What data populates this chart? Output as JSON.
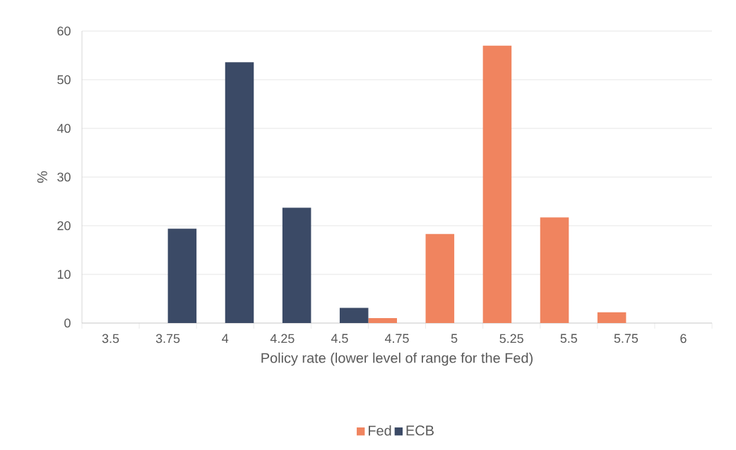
{
  "chart_data": {
    "type": "bar",
    "xlabel": "Policy rate (lower level of range for the Fed)",
    "ylabel": "%",
    "categories": [
      "3.5",
      "3.75",
      "4",
      "4.25",
      "4.5",
      "4.75",
      "5",
      "5.25",
      "5.5",
      "5.75",
      "6"
    ],
    "series": [
      {
        "name": "Fed",
        "color": "#f0845f",
        "values": [
          null,
          null,
          null,
          null,
          null,
          1.0,
          18.3,
          57.0,
          21.7,
          2.2,
          null
        ]
      },
      {
        "name": "ECB",
        "color": "#3b4a66",
        "values": [
          null,
          19.4,
          53.6,
          23.7,
          3.1,
          null,
          null,
          null,
          null,
          null,
          null
        ]
      }
    ],
    "ylim": [
      0,
      60
    ],
    "yticks": [
      0,
      10,
      20,
      30,
      40,
      50,
      60
    ],
    "grid": "y",
    "legend": "bottom"
  }
}
